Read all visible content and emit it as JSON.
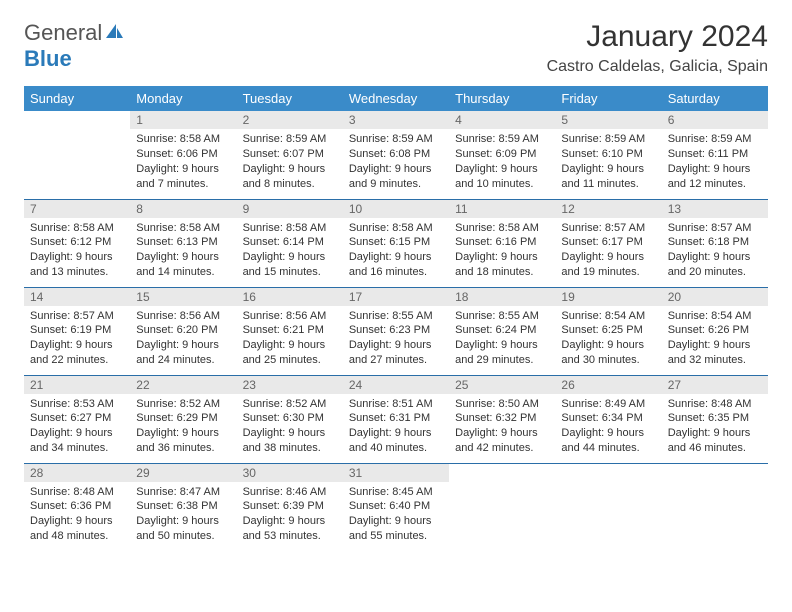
{
  "logo": {
    "text1": "General",
    "text2": "Blue"
  },
  "title": "January 2024",
  "location": "Castro Caldelas, Galicia, Spain",
  "colors": {
    "header_bg": "#3a8bc9",
    "header_text": "#ffffff",
    "daynum_bg": "#e9e9e9",
    "daynum_text": "#666666",
    "border": "#2a6ea8",
    "body_text": "#333333",
    "logo_gray": "#555555",
    "logo_blue": "#2a7ab9"
  },
  "dayHeaders": [
    "Sunday",
    "Monday",
    "Tuesday",
    "Wednesday",
    "Thursday",
    "Friday",
    "Saturday"
  ],
  "weeks": [
    [
      null,
      {
        "n": "1",
        "sr": "Sunrise: 8:58 AM",
        "ss": "Sunset: 6:06 PM",
        "d1": "Daylight: 9 hours",
        "d2": "and 7 minutes."
      },
      {
        "n": "2",
        "sr": "Sunrise: 8:59 AM",
        "ss": "Sunset: 6:07 PM",
        "d1": "Daylight: 9 hours",
        "d2": "and 8 minutes."
      },
      {
        "n": "3",
        "sr": "Sunrise: 8:59 AM",
        "ss": "Sunset: 6:08 PM",
        "d1": "Daylight: 9 hours",
        "d2": "and 9 minutes."
      },
      {
        "n": "4",
        "sr": "Sunrise: 8:59 AM",
        "ss": "Sunset: 6:09 PM",
        "d1": "Daylight: 9 hours",
        "d2": "and 10 minutes."
      },
      {
        "n": "5",
        "sr": "Sunrise: 8:59 AM",
        "ss": "Sunset: 6:10 PM",
        "d1": "Daylight: 9 hours",
        "d2": "and 11 minutes."
      },
      {
        "n": "6",
        "sr": "Sunrise: 8:59 AM",
        "ss": "Sunset: 6:11 PM",
        "d1": "Daylight: 9 hours",
        "d2": "and 12 minutes."
      }
    ],
    [
      {
        "n": "7",
        "sr": "Sunrise: 8:58 AM",
        "ss": "Sunset: 6:12 PM",
        "d1": "Daylight: 9 hours",
        "d2": "and 13 minutes."
      },
      {
        "n": "8",
        "sr": "Sunrise: 8:58 AM",
        "ss": "Sunset: 6:13 PM",
        "d1": "Daylight: 9 hours",
        "d2": "and 14 minutes."
      },
      {
        "n": "9",
        "sr": "Sunrise: 8:58 AM",
        "ss": "Sunset: 6:14 PM",
        "d1": "Daylight: 9 hours",
        "d2": "and 15 minutes."
      },
      {
        "n": "10",
        "sr": "Sunrise: 8:58 AM",
        "ss": "Sunset: 6:15 PM",
        "d1": "Daylight: 9 hours",
        "d2": "and 16 minutes."
      },
      {
        "n": "11",
        "sr": "Sunrise: 8:58 AM",
        "ss": "Sunset: 6:16 PM",
        "d1": "Daylight: 9 hours",
        "d2": "and 18 minutes."
      },
      {
        "n": "12",
        "sr": "Sunrise: 8:57 AM",
        "ss": "Sunset: 6:17 PM",
        "d1": "Daylight: 9 hours",
        "d2": "and 19 minutes."
      },
      {
        "n": "13",
        "sr": "Sunrise: 8:57 AM",
        "ss": "Sunset: 6:18 PM",
        "d1": "Daylight: 9 hours",
        "d2": "and 20 minutes."
      }
    ],
    [
      {
        "n": "14",
        "sr": "Sunrise: 8:57 AM",
        "ss": "Sunset: 6:19 PM",
        "d1": "Daylight: 9 hours",
        "d2": "and 22 minutes."
      },
      {
        "n": "15",
        "sr": "Sunrise: 8:56 AM",
        "ss": "Sunset: 6:20 PM",
        "d1": "Daylight: 9 hours",
        "d2": "and 24 minutes."
      },
      {
        "n": "16",
        "sr": "Sunrise: 8:56 AM",
        "ss": "Sunset: 6:21 PM",
        "d1": "Daylight: 9 hours",
        "d2": "and 25 minutes."
      },
      {
        "n": "17",
        "sr": "Sunrise: 8:55 AM",
        "ss": "Sunset: 6:23 PM",
        "d1": "Daylight: 9 hours",
        "d2": "and 27 minutes."
      },
      {
        "n": "18",
        "sr": "Sunrise: 8:55 AM",
        "ss": "Sunset: 6:24 PM",
        "d1": "Daylight: 9 hours",
        "d2": "and 29 minutes."
      },
      {
        "n": "19",
        "sr": "Sunrise: 8:54 AM",
        "ss": "Sunset: 6:25 PM",
        "d1": "Daylight: 9 hours",
        "d2": "and 30 minutes."
      },
      {
        "n": "20",
        "sr": "Sunrise: 8:54 AM",
        "ss": "Sunset: 6:26 PM",
        "d1": "Daylight: 9 hours",
        "d2": "and 32 minutes."
      }
    ],
    [
      {
        "n": "21",
        "sr": "Sunrise: 8:53 AM",
        "ss": "Sunset: 6:27 PM",
        "d1": "Daylight: 9 hours",
        "d2": "and 34 minutes."
      },
      {
        "n": "22",
        "sr": "Sunrise: 8:52 AM",
        "ss": "Sunset: 6:29 PM",
        "d1": "Daylight: 9 hours",
        "d2": "and 36 minutes."
      },
      {
        "n": "23",
        "sr": "Sunrise: 8:52 AM",
        "ss": "Sunset: 6:30 PM",
        "d1": "Daylight: 9 hours",
        "d2": "and 38 minutes."
      },
      {
        "n": "24",
        "sr": "Sunrise: 8:51 AM",
        "ss": "Sunset: 6:31 PM",
        "d1": "Daylight: 9 hours",
        "d2": "and 40 minutes."
      },
      {
        "n": "25",
        "sr": "Sunrise: 8:50 AM",
        "ss": "Sunset: 6:32 PM",
        "d1": "Daylight: 9 hours",
        "d2": "and 42 minutes."
      },
      {
        "n": "26",
        "sr": "Sunrise: 8:49 AM",
        "ss": "Sunset: 6:34 PM",
        "d1": "Daylight: 9 hours",
        "d2": "and 44 minutes."
      },
      {
        "n": "27",
        "sr": "Sunrise: 8:48 AM",
        "ss": "Sunset: 6:35 PM",
        "d1": "Daylight: 9 hours",
        "d2": "and 46 minutes."
      }
    ],
    [
      {
        "n": "28",
        "sr": "Sunrise: 8:48 AM",
        "ss": "Sunset: 6:36 PM",
        "d1": "Daylight: 9 hours",
        "d2": "and 48 minutes."
      },
      {
        "n": "29",
        "sr": "Sunrise: 8:47 AM",
        "ss": "Sunset: 6:38 PM",
        "d1": "Daylight: 9 hours",
        "d2": "and 50 minutes."
      },
      {
        "n": "30",
        "sr": "Sunrise: 8:46 AM",
        "ss": "Sunset: 6:39 PM",
        "d1": "Daylight: 9 hours",
        "d2": "and 53 minutes."
      },
      {
        "n": "31",
        "sr": "Sunrise: 8:45 AM",
        "ss": "Sunset: 6:40 PM",
        "d1": "Daylight: 9 hours",
        "d2": "and 55 minutes."
      },
      null,
      null,
      null
    ]
  ]
}
